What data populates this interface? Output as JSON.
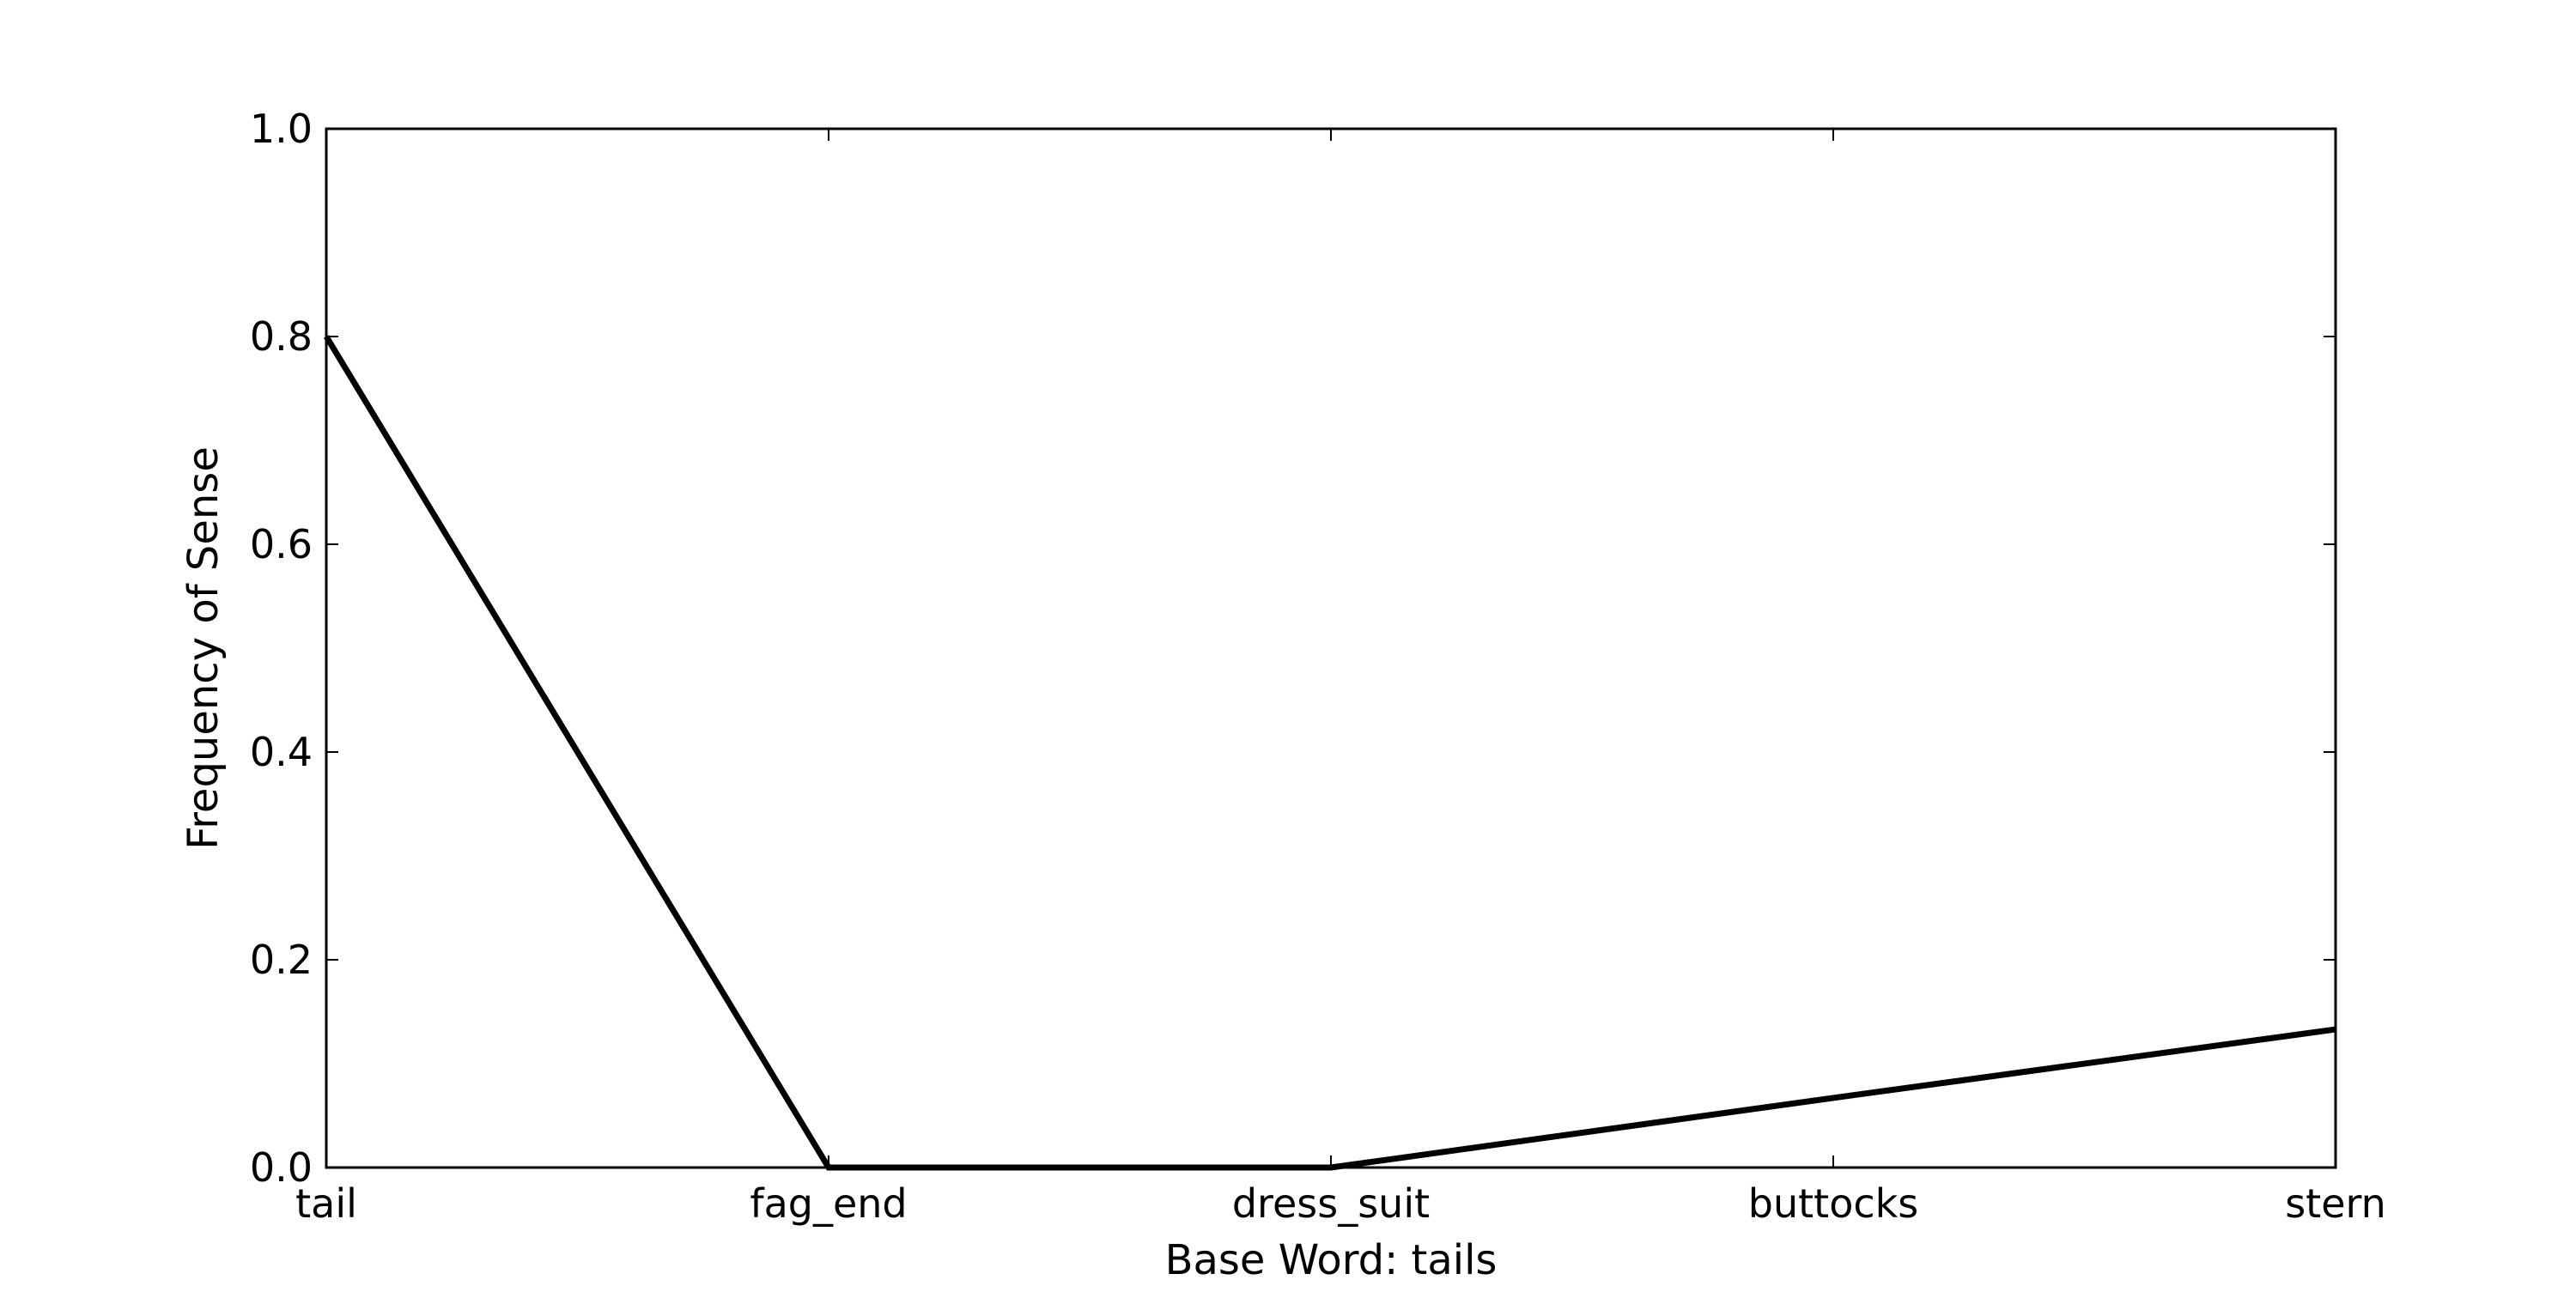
{
  "chart_data": {
    "type": "line",
    "categories": [
      "tail",
      "fag_end",
      "dress_suit",
      "buttocks",
      "stern"
    ],
    "series": [
      {
        "values": [
          0.8,
          0.0,
          0.0,
          0.067,
          0.133
        ]
      }
    ],
    "xlabel": "Base Word: tails",
    "ylabel": "Frequency of Sense",
    "ylim": [
      0.0,
      1.0
    ],
    "yticks": [
      "0.0",
      "0.2",
      "0.4",
      "0.6",
      "0.8",
      "1.0"
    ],
    "grid": false,
    "line_color": "#000000"
  }
}
